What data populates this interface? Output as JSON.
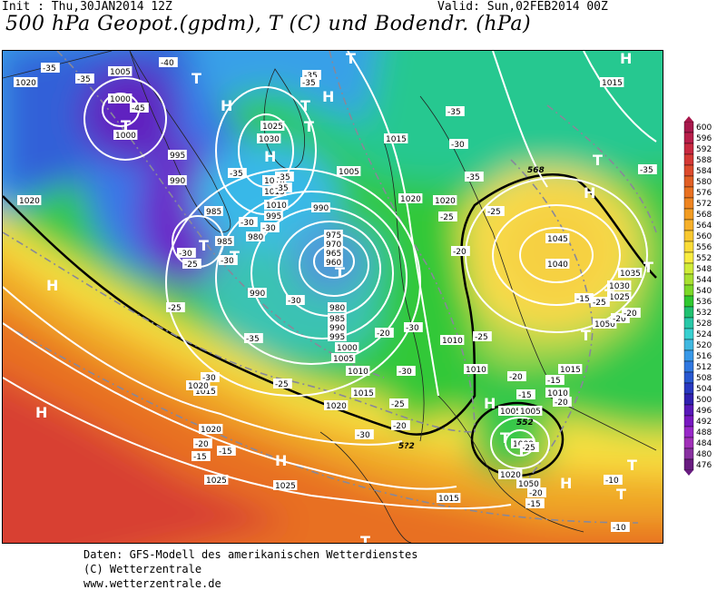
{
  "header": {
    "init": "Init : Thu,30JAN2014 12Z",
    "valid": "Valid: Sun,02FEB2014 00Z",
    "title": "500 hPa Geopot.(gpdm), T (C) und Bodendr. (hPa)"
  },
  "legend": {
    "values": [
      "600",
      "596",
      "592",
      "588",
      "584",
      "580",
      "576",
      "572",
      "568",
      "564",
      "560",
      "556",
      "552",
      "548",
      "544",
      "540",
      "536",
      "532",
      "528",
      "524",
      "520",
      "516",
      "512",
      "508",
      "504",
      "500",
      "496",
      "492",
      "488",
      "484",
      "480",
      "476"
    ],
    "colors": [
      "#a8184c",
      "#b81e4a",
      "#c82840",
      "#d43834",
      "#dc4a2c",
      "#e05e24",
      "#e87020",
      "#ee8420",
      "#f29c22",
      "#f6b02a",
      "#f8c830",
      "#fadc38",
      "#f8ec40",
      "#d0ec38",
      "#a8e030",
      "#7cd828",
      "#30c830",
      "#20c070",
      "#28c8a8",
      "#38d0d0",
      "#40b8e0",
      "#3898e8",
      "#3078e0",
      "#2858d0",
      "#2838c0",
      "#3020b0",
      "#5818b8",
      "#7818c0",
      "#9828c8",
      "#a030b8",
      "#8830a0",
      "#681c80"
    ]
  },
  "map_labels": {
    "pressure": [
      {
        "t": "1005"
      },
      {
        "t": "1000"
      },
      {
        "t": "1000"
      },
      {
        "t": "995"
      },
      {
        "t": "990"
      },
      {
        "t": "985"
      },
      {
        "t": "985"
      },
      {
        "t": "980"
      },
      {
        "t": "990"
      },
      {
        "t": "1020"
      },
      {
        "t": "1020"
      },
      {
        "t": "1025"
      },
      {
        "t": "1030"
      },
      {
        "t": "1010"
      },
      {
        "t": "1015"
      },
      {
        "t": "1005"
      },
      {
        "t": "1010"
      },
      {
        "t": "995"
      },
      {
        "t": "990"
      },
      {
        "t": "975"
      },
      {
        "t": "970"
      },
      {
        "t": "965"
      },
      {
        "t": "960"
      },
      {
        "t": "980"
      },
      {
        "t": "985"
      },
      {
        "t": "990"
      },
      {
        "t": "995"
      },
      {
        "t": "1000"
      },
      {
        "t": "1005"
      },
      {
        "t": "1010"
      },
      {
        "t": "1015"
      },
      {
        "t": "1020"
      },
      {
        "t": "1015"
      },
      {
        "t": "1010"
      },
      {
        "t": "1015"
      },
      {
        "t": "1020"
      },
      {
        "t": "1020"
      },
      {
        "t": "1025"
      },
      {
        "t": "1025"
      },
      {
        "t": "1015"
      },
      {
        "t": "1010"
      },
      {
        "t": "1010"
      },
      {
        "t": "1005"
      },
      {
        "t": "1000"
      },
      {
        "t": "1020"
      },
      {
        "t": "1050"
      },
      {
        "t": "1045"
      },
      {
        "t": "1040"
      },
      {
        "t": "1035"
      },
      {
        "t": "1030"
      },
      {
        "t": "1025"
      },
      {
        "t": "1050"
      },
      {
        "t": "1015"
      },
      {
        "t": "1020"
      },
      {
        "t": "1020"
      },
      {
        "t": "1005"
      },
      {
        "t": "1015"
      }
    ],
    "temperature": [
      {
        "t": "-35"
      },
      {
        "t": "-40"
      },
      {
        "t": "-35"
      },
      {
        "t": "-45"
      },
      {
        "t": "-35"
      },
      {
        "t": "-35"
      },
      {
        "t": "-35"
      },
      {
        "t": "-30"
      },
      {
        "t": "-35"
      },
      {
        "t": "-30"
      },
      {
        "t": "-30"
      },
      {
        "t": "-30"
      },
      {
        "t": "-30"
      },
      {
        "t": "-25"
      },
      {
        "t": "-35"
      },
      {
        "t": "-25"
      },
      {
        "t": "-30"
      },
      {
        "t": "-35"
      },
      {
        "t": "-30"
      },
      {
        "t": "-35"
      },
      {
        "t": "-25"
      },
      {
        "t": "-20"
      },
      {
        "t": "-25"
      },
      {
        "t": "-25"
      },
      {
        "t": "-25"
      },
      {
        "t": "-20"
      },
      {
        "t": "-30"
      },
      {
        "t": "-30"
      },
      {
        "t": "-25"
      },
      {
        "t": "-20"
      },
      {
        "t": "-30"
      },
      {
        "t": "-20"
      },
      {
        "t": "-15"
      },
      {
        "t": "-15"
      },
      {
        "t": "-20"
      },
      {
        "t": "-15"
      },
      {
        "t": "-15"
      },
      {
        "t": "-20"
      },
      {
        "t": "-25"
      },
      {
        "t": "-20"
      },
      {
        "t": "-15"
      },
      {
        "t": "-10"
      },
      {
        "t": "-10"
      },
      {
        "t": "-20"
      },
      {
        "t": "-20"
      },
      {
        "t": "-15"
      },
      {
        "t": "-25"
      },
      {
        "t": "-35"
      },
      {
        "t": "-35"
      }
    ],
    "contour": [
      {
        "t": "568"
      },
      {
        "t": "552"
      },
      {
        "t": "5?2"
      }
    ],
    "centers": [
      {
        "t": "T"
      },
      {
        "t": "T"
      },
      {
        "t": "H"
      },
      {
        "t": "T"
      },
      {
        "t": "H"
      },
      {
        "t": "T"
      },
      {
        "t": "H"
      },
      {
        "t": "T"
      },
      {
        "t": "T"
      },
      {
        "t": "T"
      },
      {
        "t": "H"
      },
      {
        "t": "H"
      },
      {
        "t": "H"
      },
      {
        "t": "H"
      },
      {
        "t": "T"
      },
      {
        "t": "T"
      },
      {
        "t": "H"
      },
      {
        "t": "T"
      },
      {
        "t": "T"
      },
      {
        "t": "T"
      },
      {
        "t": "T"
      },
      {
        "t": "T"
      },
      {
        "t": "T"
      },
      {
        "t": "H"
      },
      {
        "t": "T"
      },
      {
        "t": "T"
      },
      {
        "t": "T"
      },
      {
        "t": "H"
      }
    ]
  },
  "footer": {
    "line1": "Daten: GFS-Modell des amerikanischen Wetterdienstes",
    "line2": "(C) Wetterzentrale",
    "line3": "www.wetterzentrale.de"
  }
}
